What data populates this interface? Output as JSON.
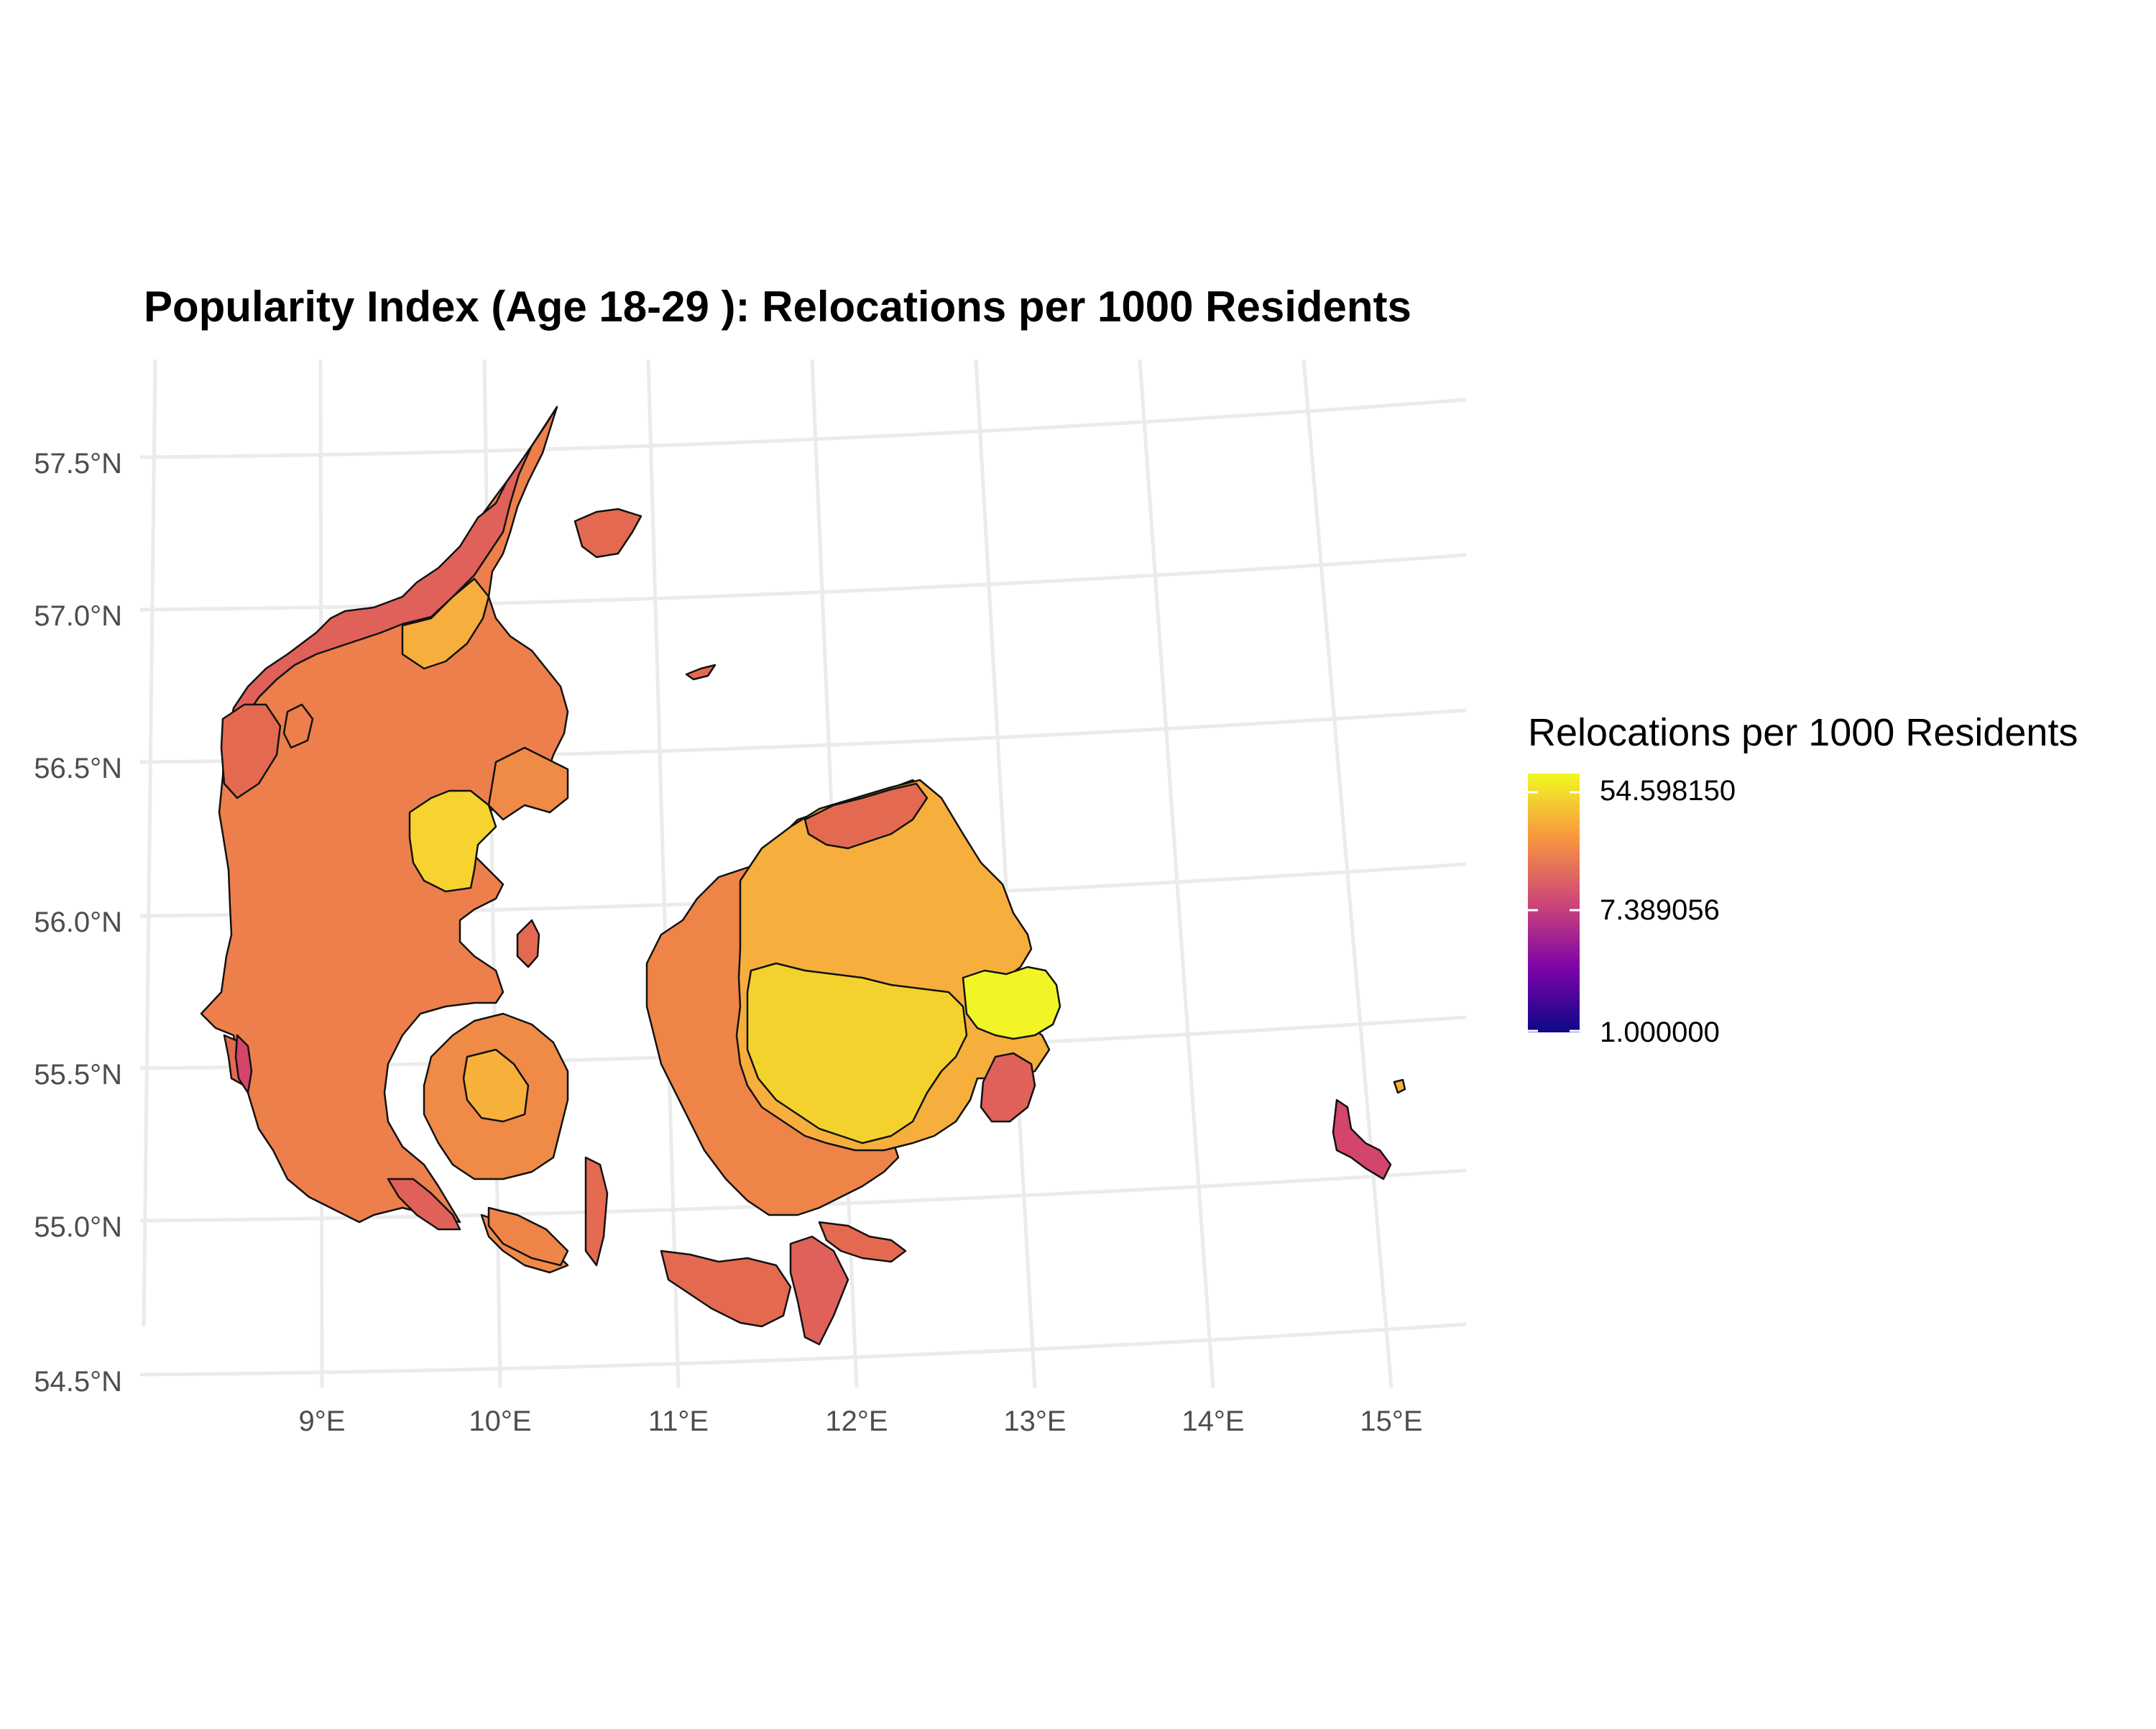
{
  "title": "Popularity Index (Age 18-29 ): Relocations per 1000 Residents",
  "map": {
    "type": "choropleth",
    "region": "Denmark municipalities",
    "projection": "conic (curved graticule)",
    "lat_ticks": [
      "54.5°N",
      "55.0°N",
      "55.5°N",
      "56.0°N",
      "56.5°N",
      "57.0°N",
      "57.5°N"
    ],
    "lon_ticks": [
      "9°E",
      "10°E",
      "11°E",
      "12°E",
      "13°E",
      "14°E",
      "15°E"
    ],
    "grid": true,
    "fill_palette": "plasma",
    "scale": "log",
    "colors": {
      "low": "#0d0887",
      "mid_low": "#7e03a8",
      "mid": "#cc4778",
      "mid_high": "#f89540",
      "high": "#f0f921",
      "jutland": "#ec7f4b",
      "funen": "#ef8a47",
      "zealand_west": "#ee8447",
      "copenhagen": "#f3d22e",
      "capital_area": "#f6ae3c",
      "bornholm": "#d4456b",
      "lolland": "#e36a50",
      "north": "#e0605a",
      "aarhus": "#f6d32f",
      "odense": "#f7b13b"
    }
  },
  "legend": {
    "title": "Relocations per 1000 Residents",
    "labels": [
      "54.598150",
      "7.389056",
      "1.000000"
    ],
    "position": "right"
  }
}
